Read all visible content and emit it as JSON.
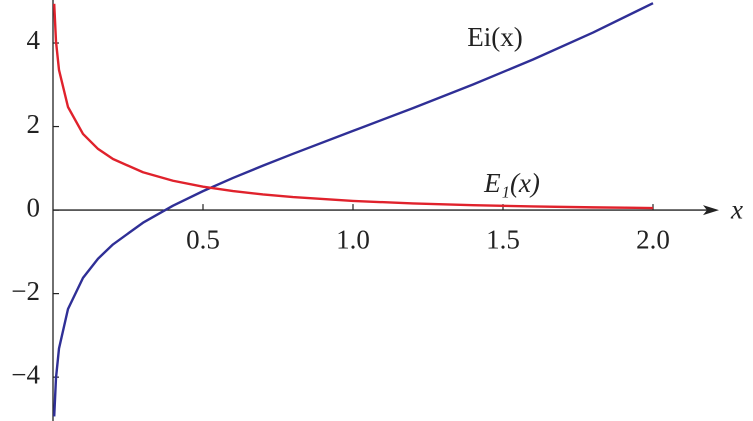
{
  "chart_data": {
    "type": "line",
    "x": [
      0.004,
      0.01,
      0.02,
      0.05,
      0.1,
      0.15,
      0.2,
      0.3,
      0.4,
      0.5,
      0.6,
      0.7,
      0.8,
      1.0,
      1.2,
      1.4,
      1.6,
      1.8,
      2.0
    ],
    "series": [
      {
        "name": "Ei(x)",
        "color": "#2f2f96",
        "values": [
          -4.94,
          -4.018,
          -3.315,
          -2.368,
          -1.623,
          -1.164,
          -0.8218,
          -0.3027,
          0.1048,
          0.4542,
          0.7699,
          1.0649,
          1.3474,
          1.8951,
          2.4421,
          3.0072,
          3.6053,
          4.2499,
          4.9542
        ]
      },
      {
        "name": "E₁(x)",
        "color": "#e0222c",
        "values": [
          4.94,
          4.0379,
          3.3547,
          2.4679,
          1.8229,
          1.4645,
          1.2227,
          0.9057,
          0.7024,
          0.5598,
          0.4544,
          0.3738,
          0.3106,
          0.2194,
          0.1584,
          0.1162,
          0.0863,
          0.0647,
          0.0489
        ]
      }
    ],
    "x_label": "x",
    "xlim": [
      0,
      2.22
    ],
    "ylim": [
      -5.05,
      5.03
    ],
    "xticks": [
      0.5,
      {
        "value": 1.0,
        "label": "1.0"
      },
      {
        "value": 1.5,
        "label": "1.5"
      },
      {
        "value": 2.0,
        "label": "2.0"
      }
    ],
    "yticks": [
      {
        "value": -4,
        "label": "−4"
      },
      {
        "value": -2,
        "label": "−2"
      },
      0,
      2,
      4
    ]
  }
}
